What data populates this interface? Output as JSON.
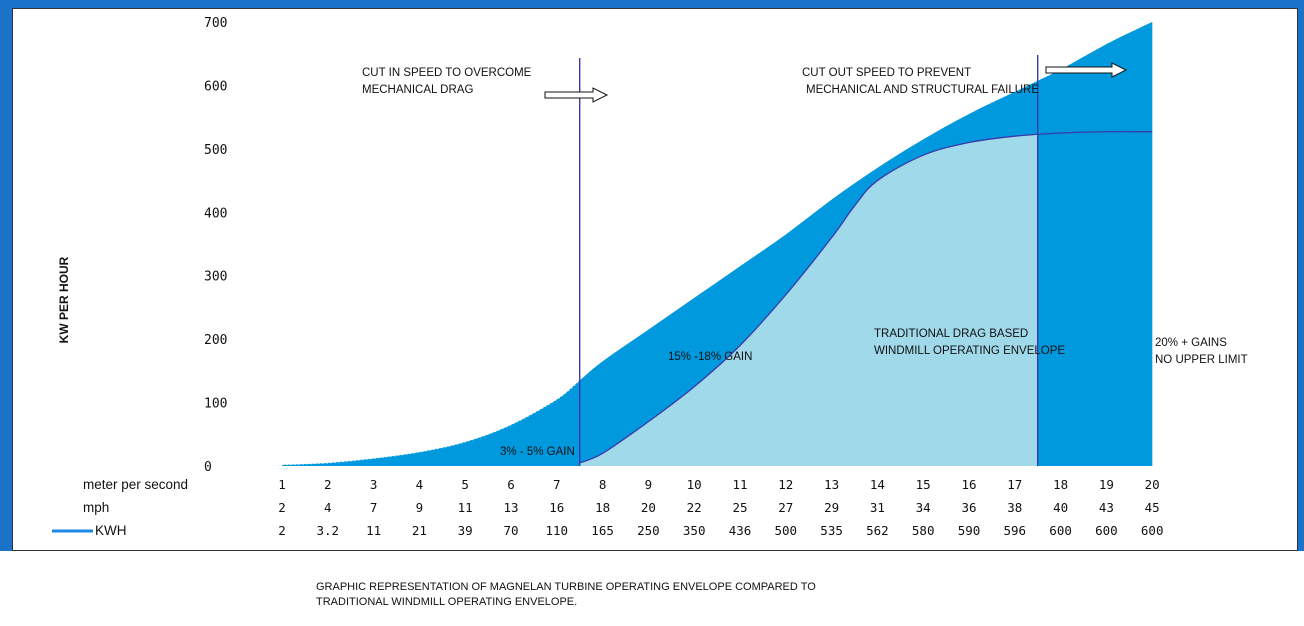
{
  "chart_data": {
    "type": "area",
    "ylabel": "KW PER HOUR",
    "yticks": [
      0,
      100,
      200,
      300,
      400,
      500,
      600,
      700
    ],
    "ylim": [
      0,
      700
    ],
    "xlim": [
      1,
      20
    ],
    "row_labels": {
      "mps": "meter per second",
      "mph": "mph",
      "kwh": "KWH"
    },
    "mps": [
      1,
      2,
      3,
      4,
      5,
      6,
      7,
      8,
      9,
      10,
      11,
      12,
      13,
      14,
      15,
      16,
      17,
      18,
      19,
      20
    ],
    "mph": [
      2,
      4,
      7,
      9,
      11,
      13,
      16,
      18,
      20,
      22,
      25,
      27,
      29,
      31,
      34,
      36,
      38,
      40,
      43,
      45
    ],
    "kwh": [
      "2",
      "3.2",
      "11",
      "21",
      "39",
      "70",
      "110",
      "165",
      "250",
      "350",
      "436",
      "500",
      "535",
      "562",
      "580",
      "590",
      "596",
      "600",
      "600",
      "600"
    ],
    "series": [
      {
        "name": "KWH",
        "x": [
          1,
          2,
          3,
          4,
          5,
          6,
          7,
          7.5,
          8,
          9,
          10,
          11,
          12,
          13,
          14,
          15,
          16,
          17,
          18,
          19,
          20
        ],
        "y": [
          2,
          5,
          12,
          22,
          38,
          65,
          105,
          135,
          165,
          215,
          265,
          315,
          365,
          420,
          470,
          515,
          555,
          590,
          625,
          665,
          700
        ]
      },
      {
        "x": [
          7.5,
          8,
          9,
          10,
          11,
          12,
          13,
          13.5,
          14,
          15,
          16,
          17,
          18,
          19,
          20
        ],
        "y": [
          5,
          20,
          70,
          125,
          190,
          270,
          360,
          410,
          450,
          490,
          510,
          520,
          525,
          527,
          527
        ]
      }
    ],
    "cut_in_x": 7.5,
    "cut_out_x": 17.5,
    "colors": {
      "magnelan": "#0099dd",
      "traditional": "#9fd9ea",
      "line": "#3a3aa8",
      "series_line": "#1e88e5"
    },
    "annotations": {
      "cut_in": [
        "CUT IN SPEED TO OVERCOME",
        "MECHANICAL DRAG"
      ],
      "cut_out": [
        "CUT OUT SPEED TO PREVENT",
        "MECHANICAL AND STRUCTURAL FAILURE"
      ],
      "gain_low": "3% - 5% GAIN",
      "gain_mid": "15% -18% GAIN",
      "traditional": [
        "TRADITIONAL DRAG BASED",
        "WINDMILL OPERATING ENVELOPE"
      ],
      "gain_high": [
        "20% + GAINS",
        "NO UPPER LIMIT"
      ]
    }
  },
  "caption": {
    "line1": "GRAPHIC REPRESENTATION OF MAGNELAN TURBINE OPERATING ENVELOPE COMPARED TO",
    "line2": "TRADITIONAL WINDMILL OPERATING ENVELOPE."
  }
}
